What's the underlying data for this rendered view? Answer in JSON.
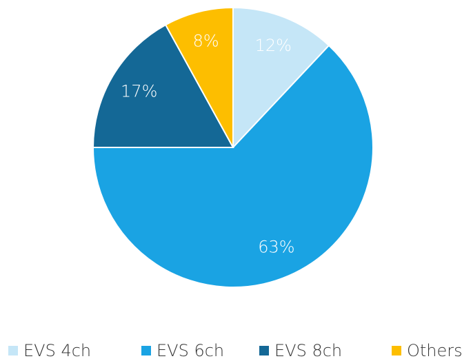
{
  "chart_data": {
    "type": "pie",
    "categories": [
      "EVS 4ch",
      "EVS 6ch",
      "EVS 8ch",
      "Others"
    ],
    "values": [
      12,
      63,
      17,
      8
    ],
    "value_labels": [
      "12%",
      "63%",
      "17%",
      "8%"
    ],
    "colors": [
      "#c5e6f7",
      "#1aa3e3",
      "#146896",
      "#fdbe00"
    ],
    "legend": "bottom"
  }
}
